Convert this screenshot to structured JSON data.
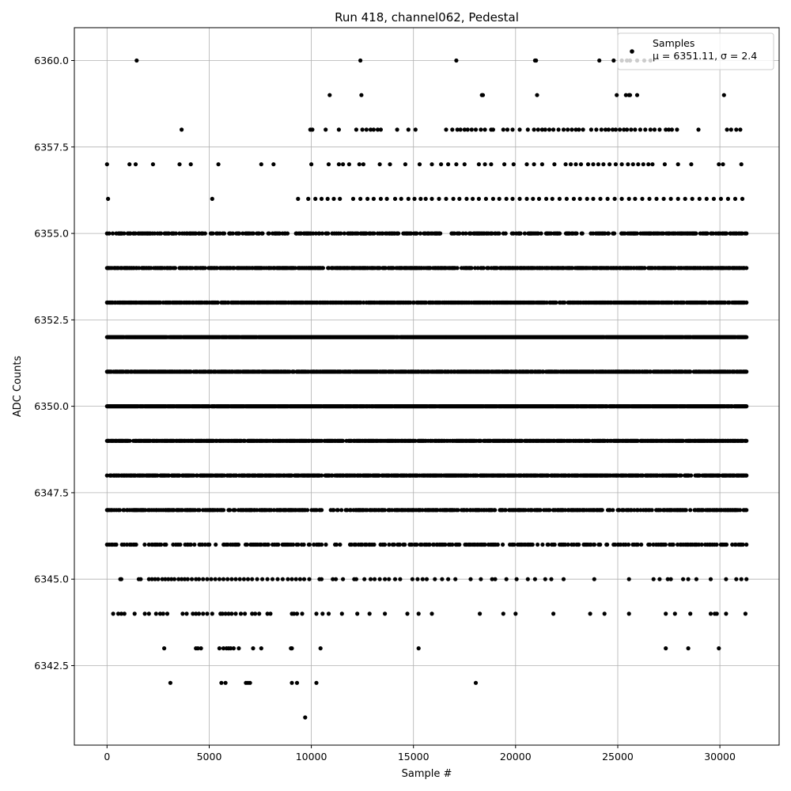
{
  "chart_data": {
    "type": "scatter",
    "title": "Run 418, channel062, Pedestal",
    "xlabel": "Sample #",
    "ylabel": "ADC Counts",
    "xlim": [
      -1600,
      32900
    ],
    "ylim": [
      6340.2,
      6360.95
    ],
    "x_ticks": [
      0,
      5000,
      10000,
      15000,
      20000,
      25000,
      30000
    ],
    "y_ticks": [
      6342.5,
      6345.0,
      6347.5,
      6350.0,
      6352.5,
      6355.0,
      6357.5,
      6360.0
    ],
    "x_tick_labels": [
      "0",
      "5000",
      "10000",
      "15000",
      "20000",
      "25000",
      "30000"
    ],
    "y_tick_labels": [
      "6342.5",
      "6345.0",
      "6347.5",
      "6350.0",
      "6352.5",
      "6355.0",
      "6357.5",
      "6360.0"
    ],
    "grid": true,
    "legend_position": "top-right",
    "marker_color": "#000000",
    "series": [
      {
        "name": "Samples",
        "stats_label": "μ = 6351.11, σ = 2.4",
        "sample_count": 31400,
        "levels": [
          {
            "y": 6360,
            "x": [
              1450,
              12400,
              17100,
              20950,
              21000,
              24100,
              24800,
              25200,
              25450,
              25600,
              25950,
              26300,
              26600
            ]
          },
          {
            "y": 6359,
            "x": [
              10900,
              12450,
              18350,
              18400,
              21050,
              24950,
              25400,
              25550,
              25600,
              25950,
              30200
            ]
          },
          {
            "y": 6358,
            "x": [
              3650,
              9950,
              10050,
              10700,
              11350,
              12200,
              12500,
              12700,
              12900,
              13050,
              13250,
              13400,
              14200,
              14750,
              15100,
              16600,
              16900,
              17150,
              17300,
              17500,
              17650,
              17850,
              18050,
              18300,
              18500,
              18800,
              18900,
              19400,
              19600,
              19850,
              20200,
              20600,
              20900,
              21100,
              21300,
              21450,
              21650,
              21850,
              22100,
              22350,
              22550,
              22750,
              22950,
              23100,
              23300,
              23700,
              23950,
              24200,
              24400,
              24550,
              24750,
              24900,
              25100,
              25300,
              25450,
              25650,
              25850,
              26100,
              26350,
              26600,
              26800,
              27050,
              27350,
              27500,
              27650,
              27900,
              28950,
              30350,
              30550,
              30800,
              31000
            ]
          },
          {
            "y": 6357,
            "x": [
              0,
              1100,
              1400,
              2250,
              3550,
              4100,
              5450,
              7550,
              8150,
              10000,
              10850,
              11350,
              11550,
              11850,
              12350,
              12550,
              13350,
              13850,
              14600,
              15300,
              15900,
              16350,
              16700,
              17100,
              17500,
              18200,
              18500,
              18800,
              19450,
              19900,
              20550,
              20900,
              21300,
              21900,
              22450,
              22700,
              22950,
              23200,
              23550,
              23800,
              24050,
              24300,
              24600,
              24900,
              25200,
              25500,
              25750,
              26000,
              26250,
              26500,
              26700,
              27300,
              27950,
              28600,
              29950,
              30150,
              31050
            ]
          },
          {
            "y": 6356,
            "x": [
              50,
              5150,
              9350,
              9850,
              10200,
              10500,
              10800,
              11100,
              11400,
              12050,
              12400,
              12750,
              13050,
              13400,
              13700,
              14100,
              14400,
              14750,
              15050,
              15350,
              15600,
              15900,
              16250,
              16600,
              16950,
              17250,
              17600,
              17900,
              18200,
              18550,
              18900,
              19200,
              19550,
              19850,
              20200,
              20550,
              20850,
              21150,
              21500,
              21800,
              22150,
              22500,
              22850,
              23150,
              23500,
              23800,
              24150,
              24500,
              24850,
              25200,
              25550,
              25850,
              26200,
              26550,
              26900,
              27250,
              27600,
              27950,
              28300,
              28650,
              29000,
              29350,
              29700,
              30050,
              30400,
              30750,
              31100
            ]
          },
          {
            "y": 6355,
            "x": [
              0,
              31300
            ]
          },
          {
            "y": 6354,
            "x": [
              0,
              31300
            ]
          },
          {
            "y": 6353,
            "x": [
              0,
              31300
            ]
          },
          {
            "y": 6352,
            "x": [
              0,
              31300
            ]
          },
          {
            "y": 6351,
            "x": [
              0,
              31300
            ]
          },
          {
            "y": 6350,
            "x": [
              0,
              31300
            ]
          },
          {
            "y": 6349,
            "x": [
              0,
              31300
            ]
          },
          {
            "y": 6348,
            "x": [
              0,
              31300
            ]
          },
          {
            "y": 6347,
            "x": [
              0,
              31300
            ]
          },
          {
            "y": 6346,
            "x": [
              0,
              31300
            ]
          },
          {
            "y": 6345,
            "x": [
              650,
              700,
              1550,
              1650,
              2050,
              2200,
              2350,
              2500,
              2700,
              2850,
              3000,
              3150,
              3300,
              3500,
              3650,
              3800,
              3950,
              4150,
              4350,
              4500,
              4700,
              4900,
              5100,
              5300,
              5500,
              5700,
              5900,
              6100,
              6300,
              6500,
              6700,
              6900,
              7100,
              7350,
              7600,
              7850,
              8100,
              8350,
              8600,
              8850,
              9050,
              9250,
              9450,
              9650,
              9900,
              10400,
              10500,
              11050,
              11200,
              11550,
              12100,
              12200,
              12600,
              12900,
              13100,
              13350,
              13600,
              13800,
              14100,
              14350,
              14950,
              15200,
              15450,
              15650,
              16050,
              16400,
              16700,
              17050,
              17800,
              18300,
              18850,
              19000,
              19550,
              20050,
              20600,
              20950,
              21450,
              21750,
              22350,
              23850,
              25550,
              26750,
              27050,
              27450,
              27600,
              28200,
              28450,
              28850,
              29550,
              30300,
              30800,
              31050,
              31300
            ]
          },
          {
            "y": 6344,
            "x": [
              300,
              550,
              700,
              850,
              1350,
              1850,
              2050,
              2400,
              2600,
              2750,
              2950,
              3700,
              3900,
              4200,
              4350,
              4500,
              4700,
              4900,
              5150,
              5550,
              5650,
              5800,
              5950,
              6100,
              6300,
              6550,
              6750,
              7100,
              7250,
              7450,
              7850,
              8000,
              9050,
              9150,
              9300,
              9550,
              10250,
              10550,
              10850,
              11500,
              12250,
              12850,
              13600,
              14700,
              15250,
              15900,
              18250,
              19400,
              20000,
              21850,
              23650,
              24350,
              25550,
              27350,
              27800,
              28550,
              29550,
              29750,
              29850,
              30300,
              31250
            ]
          },
          {
            "y": 6343,
            "x": [
              2800,
              4350,
              4450,
              4600,
              5500,
              5700,
              5850,
              5950,
              6050,
              6200,
              6450,
              7150,
              7550,
              9000,
              9050,
              10450,
              15250,
              27350,
              28450,
              29950
            ]
          },
          {
            "y": 6342,
            "x": [
              3100,
              5600,
              5800,
              6800,
              6900,
              7000,
              9050,
              9300,
              10250,
              18050
            ]
          },
          {
            "y": 6341,
            "x": [
              9700
            ]
          }
        ],
        "level_density": [
          {
            "y": 6355,
            "fraction": 0.42
          },
          {
            "y": 6354,
            "fraction": 0.66
          },
          {
            "y": 6353,
            "fraction": 0.7
          },
          {
            "y": 6352,
            "fraction": 0.97
          },
          {
            "y": 6351,
            "fraction": 0.74
          },
          {
            "y": 6350,
            "fraction": 0.95
          },
          {
            "y": 6349,
            "fraction": 0.78
          },
          {
            "y": 6348,
            "fraction": 0.7
          },
          {
            "y": 6347,
            "fraction": 0.52
          },
          {
            "y": 6346,
            "fraction": 0.36
          }
        ]
      }
    ]
  }
}
